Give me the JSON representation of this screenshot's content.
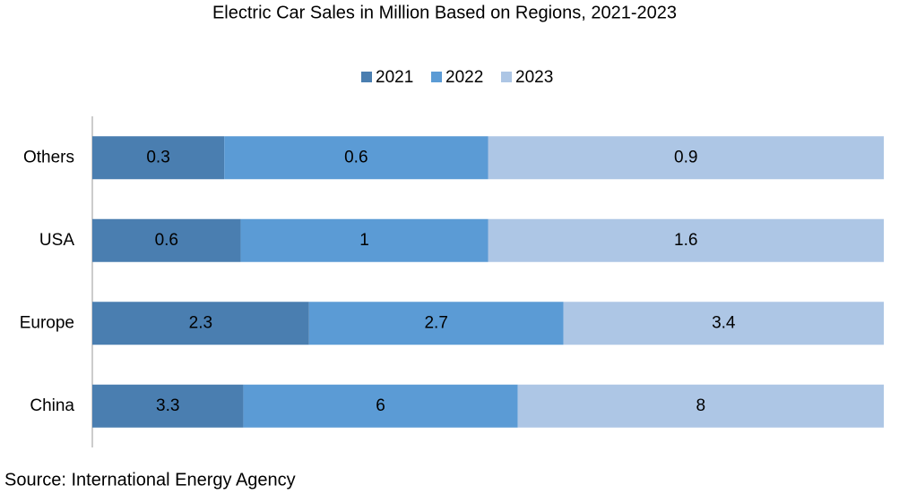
{
  "chart_data": {
    "type": "bar",
    "orientation": "horizontal",
    "stacking": "percent",
    "title": "Electric Car Sales in Million Based on Regions, 2021-2023",
    "categories": [
      "Others",
      "USA",
      "Europe",
      "China"
    ],
    "series": [
      {
        "name": "2021",
        "color": "#4a7eb0",
        "values": [
          0.3,
          0.6,
          2.3,
          3.3
        ]
      },
      {
        "name": "2022",
        "color": "#5b9bd5",
        "values": [
          0.6,
          1,
          2.7,
          6
        ]
      },
      {
        "name": "2023",
        "color": "#adc6e5",
        "values": [
          0.9,
          1.6,
          3.4,
          8
        ]
      }
    ],
    "legend": "top",
    "source": "Source: International Energy Agency"
  }
}
